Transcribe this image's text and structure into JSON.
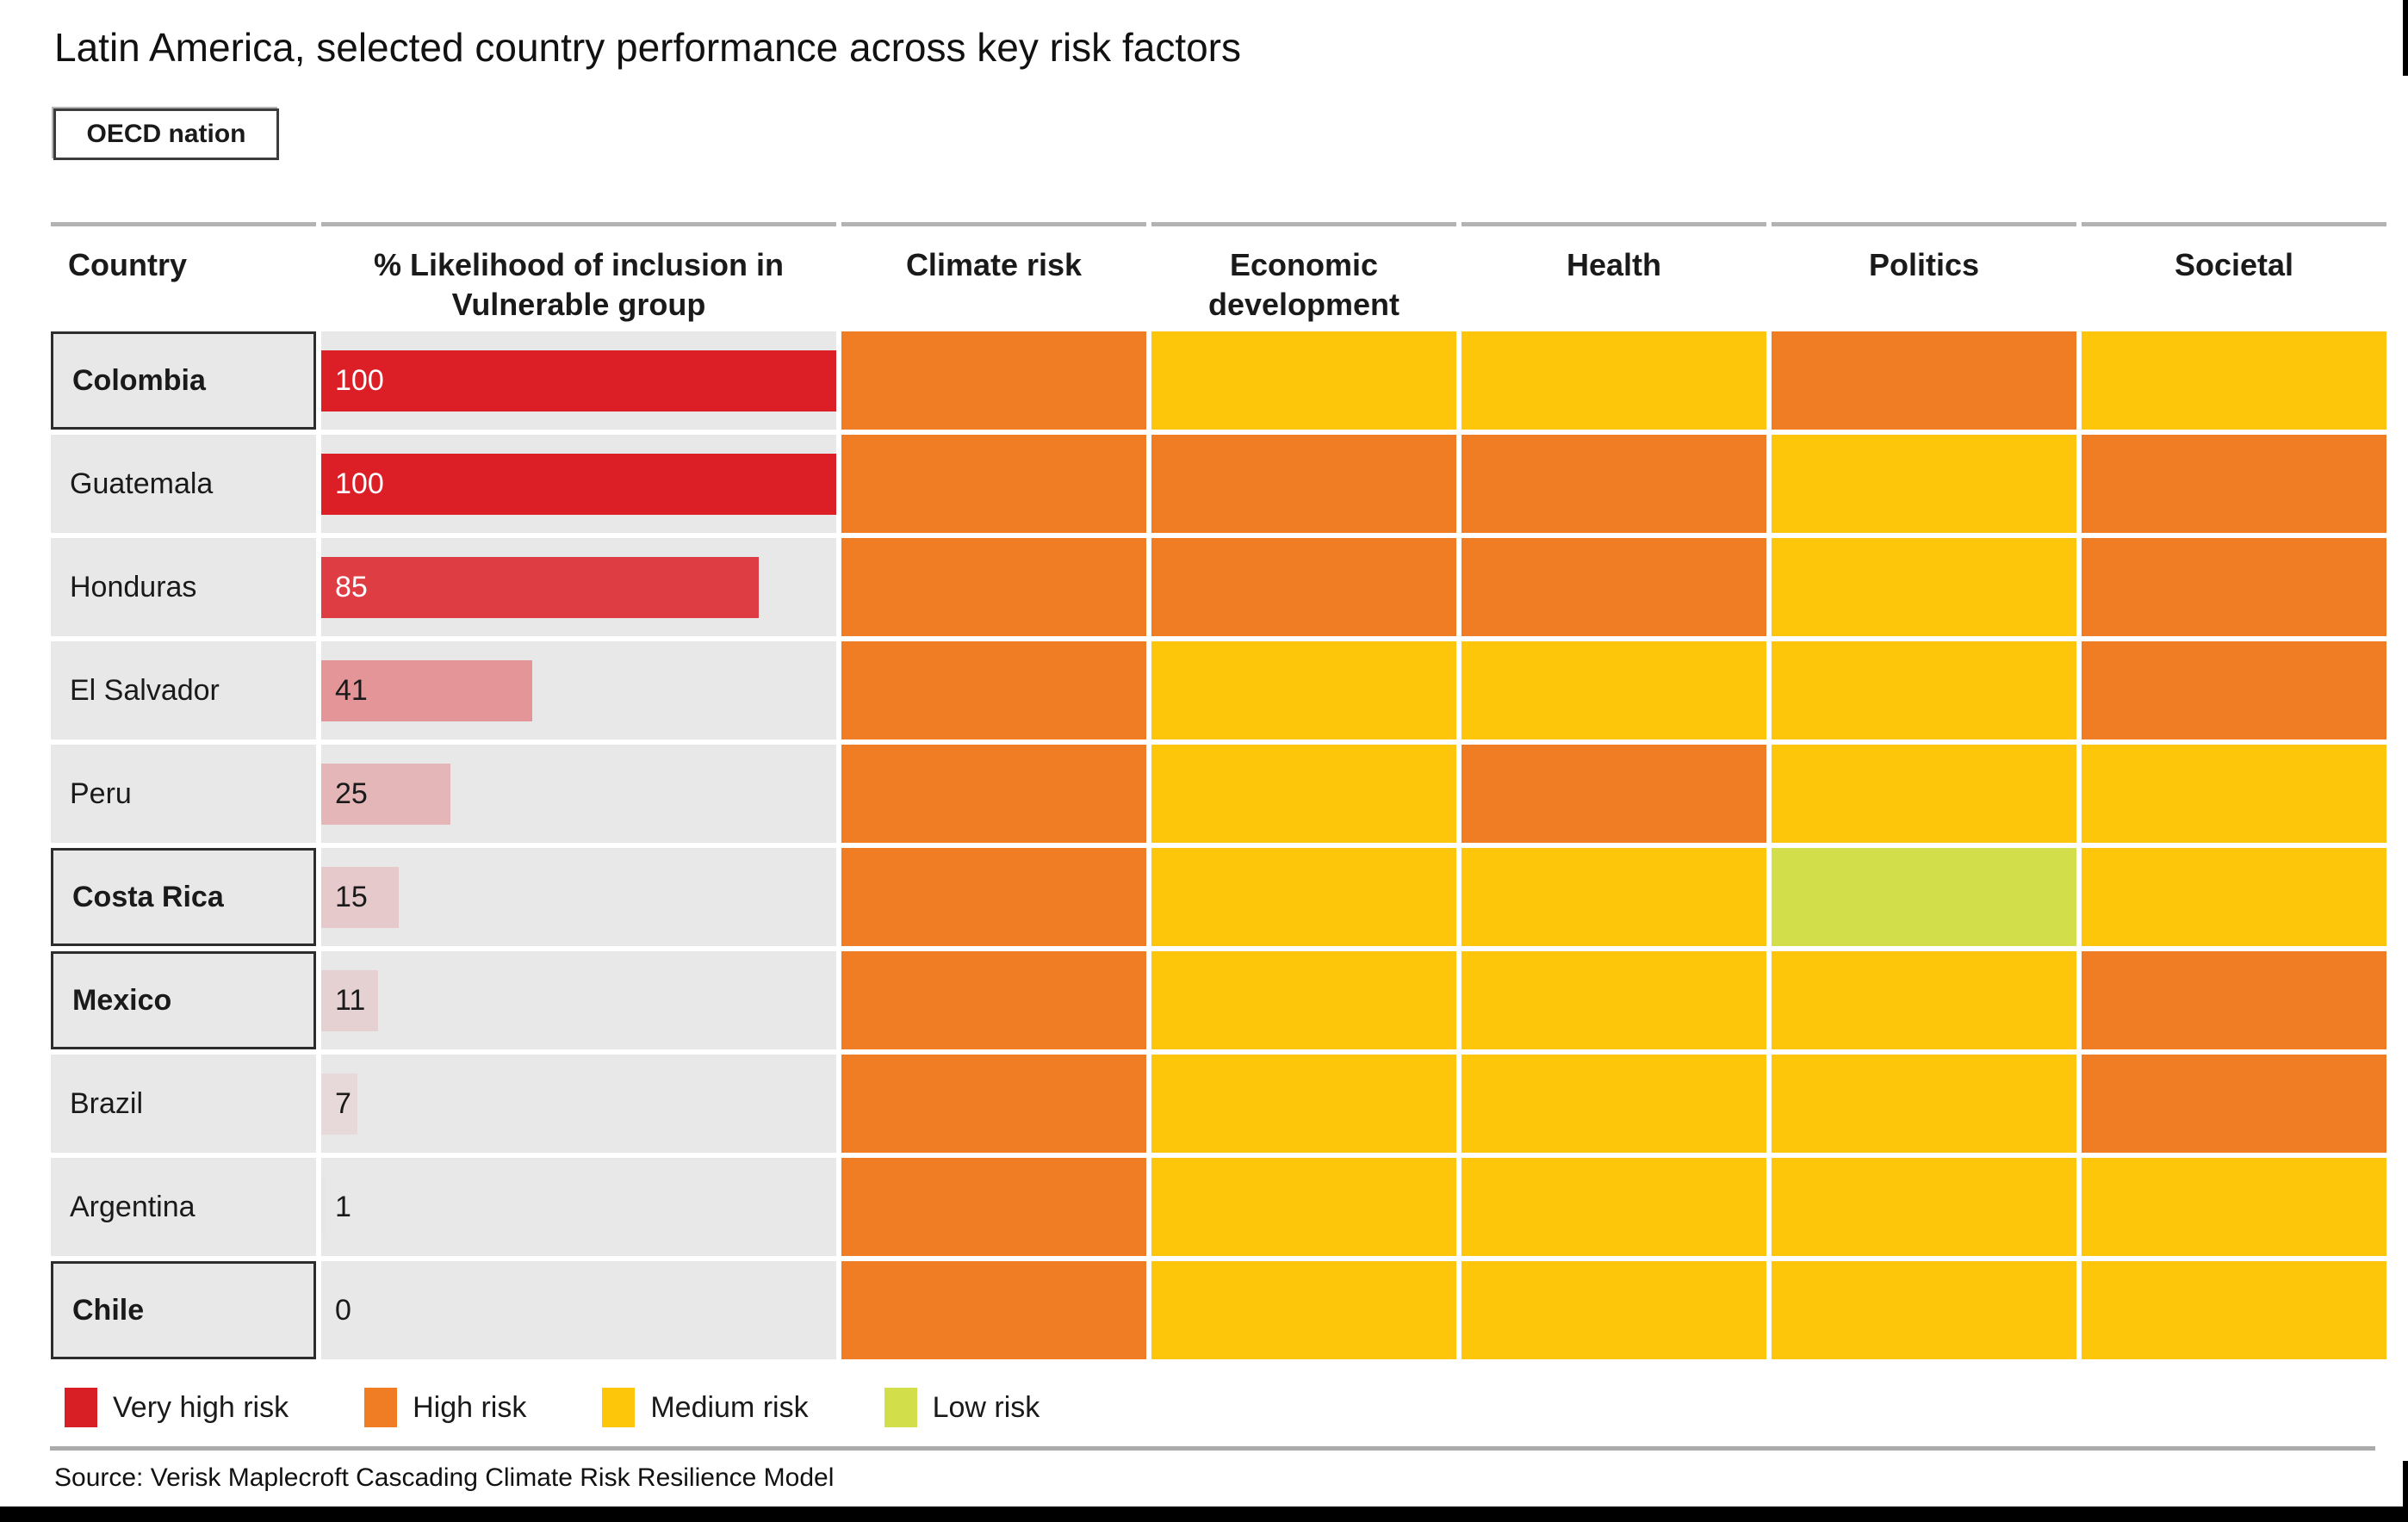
{
  "title": "Latin America, selected country performance across key risk factors",
  "oecd_label": "OECD nation",
  "columns": [
    "Country",
    "% Likelihood of inclusion in\nVulnerable group",
    "Climate risk",
    "Economic\ndevelopment",
    "Health",
    "Politics",
    "Societal"
  ],
  "legend": [
    {
      "label": "Very high risk",
      "key": "very_high"
    },
    {
      "label": "High risk",
      "key": "high"
    },
    {
      "label": "Medium risk",
      "key": "medium"
    },
    {
      "label": "Low risk",
      "key": "low"
    }
  ],
  "source": "Source: Verisk Maplecroft Cascading Climate Risk Resilience Model",
  "colors": {
    "very_high": "#d91f26",
    "high": "#f07d23",
    "medium": "#fdc60b",
    "low": "#d2df4a",
    "bar_red_rgb": "220,31,38",
    "row_bg": "#e8e8e8"
  },
  "chart_data": {
    "type": "heatmap",
    "bar_column": "% Likelihood of inclusion in Vulnerable group",
    "bar_range": [
      0,
      100
    ],
    "risk_columns": [
      "Climate risk",
      "Economic development",
      "Health",
      "Politics",
      "Societal"
    ],
    "risk_scale": [
      "very_high",
      "high",
      "medium",
      "low"
    ],
    "rows": [
      {
        "country": "Colombia",
        "oecd": true,
        "likelihood": 100,
        "risks": [
          "high",
          "medium",
          "medium",
          "high",
          "medium"
        ]
      },
      {
        "country": "Guatemala",
        "oecd": false,
        "likelihood": 100,
        "risks": [
          "high",
          "high",
          "high",
          "medium",
          "high"
        ]
      },
      {
        "country": "Honduras",
        "oecd": false,
        "likelihood": 85,
        "risks": [
          "high",
          "high",
          "high",
          "medium",
          "high"
        ]
      },
      {
        "country": "El Salvador",
        "oecd": false,
        "likelihood": 41,
        "risks": [
          "high",
          "medium",
          "medium",
          "medium",
          "high"
        ]
      },
      {
        "country": "Peru",
        "oecd": false,
        "likelihood": 25,
        "risks": [
          "high",
          "medium",
          "high",
          "medium",
          "medium"
        ]
      },
      {
        "country": "Costa Rica",
        "oecd": true,
        "likelihood": 15,
        "risks": [
          "high",
          "medium",
          "medium",
          "low",
          "medium"
        ]
      },
      {
        "country": "Mexico",
        "oecd": true,
        "likelihood": 11,
        "risks": [
          "high",
          "medium",
          "medium",
          "medium",
          "high"
        ]
      },
      {
        "country": "Brazil",
        "oecd": false,
        "likelihood": 7,
        "risks": [
          "high",
          "medium",
          "medium",
          "medium",
          "high"
        ]
      },
      {
        "country": "Argentina",
        "oecd": false,
        "likelihood": 1,
        "risks": [
          "high",
          "medium",
          "medium",
          "medium",
          "medium"
        ]
      },
      {
        "country": "Chile",
        "oecd": true,
        "likelihood": 0,
        "risks": [
          "high",
          "medium",
          "medium",
          "medium",
          "medium"
        ]
      }
    ]
  }
}
